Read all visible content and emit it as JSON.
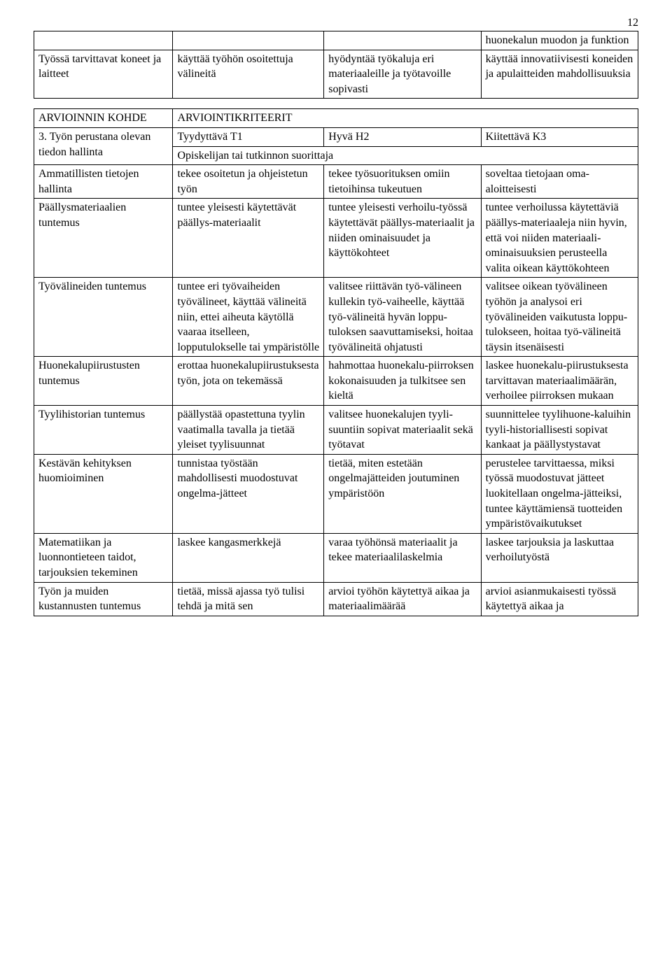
{
  "page_number": "12",
  "table1": {
    "r0": {
      "c0": "",
      "c1": "",
      "c2": "",
      "c3": "huonekalun muodon ja funktion"
    },
    "r1": {
      "c0": "Työssä tarvittavat koneet ja laitteet",
      "c1": "käyttää työhön osoitettuja välineitä",
      "c2": "hyödyntää työkaluja eri materiaaleille ja työtavoille sopivasti",
      "c3": "käyttää innovatiivisesti koneiden ja apulaitteiden mahdollisuuksia"
    }
  },
  "table2": {
    "header": {
      "c0": "ARVIOINNIN KOHDE",
      "c1": "ARVIOINTIKRITEERIT"
    },
    "sub": {
      "c0": "3. Työn perustana olevan tiedon hallinta",
      "t1": "Tyydyttävä T1",
      "h2": "Hyvä H2",
      "k3": "Kiitettävä K3",
      "span": "Opiskelijan tai tutkinnon suorittaja"
    },
    "rows": [
      {
        "c0": "Ammatillisten tietojen hallinta",
        "c1": "tekee osoitetun ja ohjeistetun työn",
        "c2": "tekee työsuorituksen omiin tietoihinsa tukeutuen",
        "c3": "soveltaa tietojaan oma-aloitteisesti"
      },
      {
        "c0": "Päällysmateriaalien tuntemus",
        "c1": "tuntee yleisesti käytettävät päällys-materiaalit",
        "c2": "tuntee yleisesti verhoilu-työssä käytettävät päällys-materiaalit ja niiden ominaisuudet ja käyttökohteet",
        "c3": "tuntee verhoilussa käytettäviä päällys-materiaaleja niin hyvin, että voi niiden materiaali-ominaisuuksien perusteella valita oikean käyttökohteen"
      },
      {
        "c0": "Työvälineiden tuntemus",
        "c1": "tuntee eri työvaiheiden työvälineet, käyttää välineitä niin, ettei aiheuta käytöllä vaaraa itselleen, lopputulokselle tai ympäristölle",
        "c2": "valitsee riittävän työ-välineen kullekin työ-vaiheelle, käyttää työ-välineitä hyvän loppu-tuloksen saavuttamiseksi, hoitaa työvälineitä ohjatusti",
        "c3": "valitsee oikean työvälineen työhön ja analysoi eri työvälineiden vaikutusta loppu-tulokseen, hoitaa työ-välineitä täysin itsenäisesti"
      },
      {
        "c0": "Huonekalupiirustusten tuntemus",
        "c1": "erottaa huonekalupiirustuksesta työn, jota on tekemässä",
        "c2": "hahmottaa huonekalu-piirroksen kokonaisuuden ja tulkitsee sen kieltä",
        "c3": "laskee huonekalu-piirustuksesta tarvittavan materiaalimäärän, verhoilee piirroksen mukaan"
      },
      {
        "c0": "Tyylihistorian tuntemus",
        "c1": "päällystää opastettuna tyylin vaatimalla tavalla ja tietää yleiset tyylisuunnat",
        "c2": "valitsee huonekalujen tyyli-suuntiin sopivat materiaalit sekä työtavat",
        "c3": "suunnittelee tyylihuone-kaluihin tyyli-historiallisesti sopivat kankaat ja päällystystavat"
      },
      {
        "c0": "Kestävän kehityksen huomioiminen",
        "c1": "tunnistaa työstään mahdollisesti muodostuvat ongelma-jätteet",
        "c2": "tietää, miten estetään ongelmajätteiden joutuminen ympäristöön",
        "c3": "perustelee tarvittaessa, miksi työssä muodostuvat jätteet luokitellaan ongelma-jätteiksi, tuntee käyttämiensä tuotteiden ympäristövaikutukset"
      },
      {
        "c0": "Matematiikan ja luonnontieteen taidot, tarjouksien tekeminen",
        "c1": "laskee kangasmerkkejä",
        "c2": "varaa työhönsä materiaalit ja tekee materiaalilaskelmia",
        "c3": "laskee tarjouksia ja laskuttaa verhoilutyöstä"
      },
      {
        "c0": "Työn ja muiden kustannusten tuntemus",
        "c1": "tietää, missä ajassa työ tulisi tehdä ja mitä sen",
        "c2": "arvioi työhön käytettyä aikaa ja materiaalimäärää",
        "c3": "arvioi asianmukaisesti työssä käytettyä aikaa ja"
      }
    ]
  }
}
